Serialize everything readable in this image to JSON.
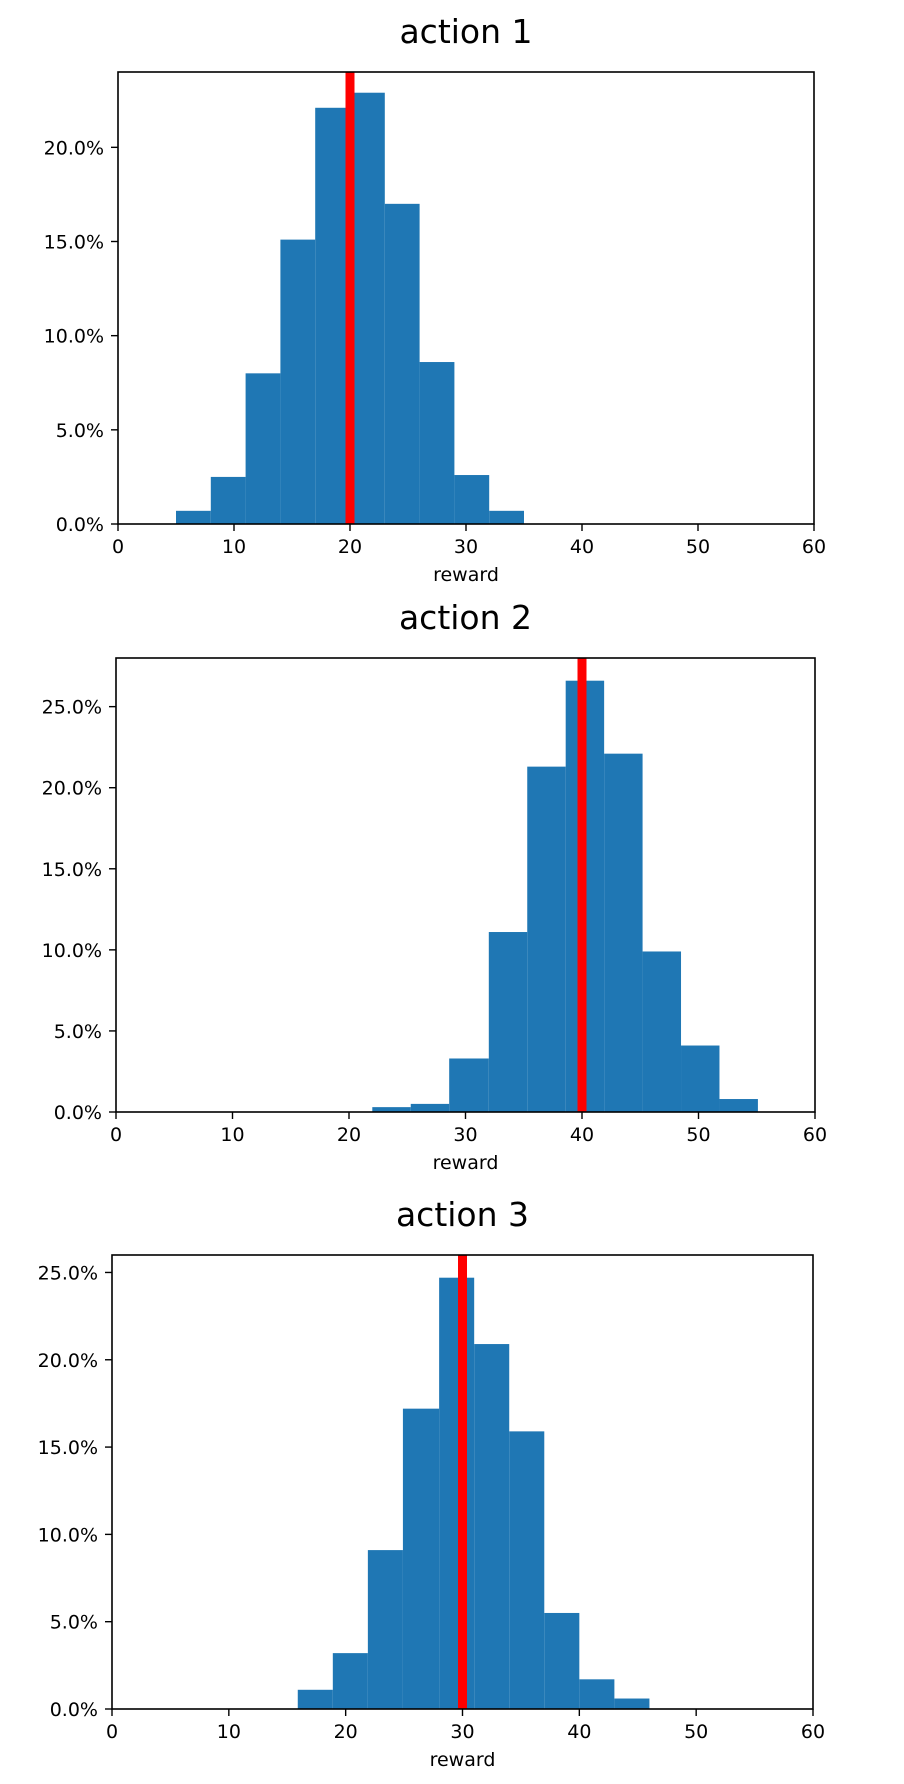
{
  "chart_data": [
    {
      "type": "bar",
      "title": "action 1",
      "xlabel": "reward",
      "ylabel": "",
      "xlim": [
        0,
        60
      ],
      "ylim": [
        0,
        0.24
      ],
      "xticks": [
        0,
        10,
        20,
        30,
        40,
        50,
        60
      ],
      "xtick_labels": [
        "0",
        "10",
        "20",
        "30",
        "40",
        "50",
        "60"
      ],
      "yticks": [
        0,
        0.05,
        0.1,
        0.15,
        0.2
      ],
      "ytick_labels": [
        "0.0%",
        "5.0%",
        "10.0%",
        "15.0%",
        "20.0%"
      ],
      "grid": false,
      "bar_color": "#1f77b4",
      "bins": [
        {
          "x0": 5.0,
          "x1": 8.0,
          "value": 0.007
        },
        {
          "x0": 8.0,
          "x1": 11.0,
          "value": 0.025
        },
        {
          "x0": 11.0,
          "x1": 14.0,
          "value": 0.08
        },
        {
          "x0": 14.0,
          "x1": 17.0,
          "value": 0.151
        },
        {
          "x0": 17.0,
          "x1": 20.0,
          "value": 0.221
        },
        {
          "x0": 20.0,
          "x1": 23.0,
          "value": 0.229
        },
        {
          "x0": 23.0,
          "x1": 26.0,
          "value": 0.17
        },
        {
          "x0": 26.0,
          "x1": 29.0,
          "value": 0.086
        },
        {
          "x0": 29.0,
          "x1": 32.0,
          "value": 0.026
        },
        {
          "x0": 32.0,
          "x1": 35.0,
          "value": 0.007
        }
      ],
      "vline": {
        "x": 20,
        "color": "#ff0000"
      }
    },
    {
      "type": "bar",
      "title": "action 2",
      "xlabel": "reward",
      "ylabel": "",
      "xlim": [
        0,
        60
      ],
      "ylim": [
        0,
        0.28
      ],
      "xticks": [
        0,
        10,
        20,
        30,
        40,
        50,
        60
      ],
      "xtick_labels": [
        "0",
        "10",
        "20",
        "30",
        "40",
        "50",
        "60"
      ],
      "yticks": [
        0,
        0.05,
        0.1,
        0.15,
        0.2,
        0.25
      ],
      "ytick_labels": [
        "0.0%",
        "5.0%",
        "10.0%",
        "15.0%",
        "20.0%",
        "25.0%"
      ],
      "grid": false,
      "bar_color": "#1f77b4",
      "bins": [
        {
          "x0": 22.0,
          "x1": 25.3,
          "value": 0.003
        },
        {
          "x0": 25.3,
          "x1": 28.6,
          "value": 0.005
        },
        {
          "x0": 28.6,
          "x1": 32.0,
          "value": 0.033
        },
        {
          "x0": 32.0,
          "x1": 35.3,
          "value": 0.111
        },
        {
          "x0": 35.3,
          "x1": 38.6,
          "value": 0.213
        },
        {
          "x0": 38.6,
          "x1": 41.9,
          "value": 0.266
        },
        {
          "x0": 41.9,
          "x1": 45.2,
          "value": 0.221
        },
        {
          "x0": 45.2,
          "x1": 48.5,
          "value": 0.099
        },
        {
          "x0": 48.5,
          "x1": 51.8,
          "value": 0.041
        },
        {
          "x0": 51.8,
          "x1": 55.1,
          "value": 0.008
        }
      ],
      "vline": {
        "x": 40,
        "color": "#ff0000"
      }
    },
    {
      "type": "bar",
      "title": "action 3",
      "xlabel": "reward",
      "ylabel": "",
      "xlim": [
        0,
        60
      ],
      "ylim": [
        0,
        0.26
      ],
      "xticks": [
        0,
        10,
        20,
        30,
        40,
        50,
        60
      ],
      "xtick_labels": [
        "0",
        "10",
        "20",
        "30",
        "40",
        "50",
        "60"
      ],
      "yticks": [
        0,
        0.05,
        0.1,
        0.15,
        0.2,
        0.25
      ],
      "ytick_labels": [
        "0.0%",
        "5.0%",
        "10.0%",
        "15.0%",
        "20.0%",
        "25.0%"
      ],
      "grid": false,
      "bar_color": "#1f77b4",
      "bins": [
        {
          "x0": 15.9,
          "x1": 18.9,
          "value": 0.011
        },
        {
          "x0": 18.9,
          "x1": 21.9,
          "value": 0.032
        },
        {
          "x0": 21.9,
          "x1": 24.9,
          "value": 0.091
        },
        {
          "x0": 24.9,
          "x1": 28.0,
          "value": 0.172
        },
        {
          "x0": 28.0,
          "x1": 31.0,
          "value": 0.247
        },
        {
          "x0": 31.0,
          "x1": 34.0,
          "value": 0.209
        },
        {
          "x0": 34.0,
          "x1": 37.0,
          "value": 0.159
        },
        {
          "x0": 37.0,
          "x1": 40.0,
          "value": 0.055
        },
        {
          "x0": 40.0,
          "x1": 43.0,
          "value": 0.017
        },
        {
          "x0": 43.0,
          "x1": 46.0,
          "value": 0.006
        }
      ],
      "vline": {
        "x": 30,
        "color": "#ff0000"
      }
    }
  ]
}
